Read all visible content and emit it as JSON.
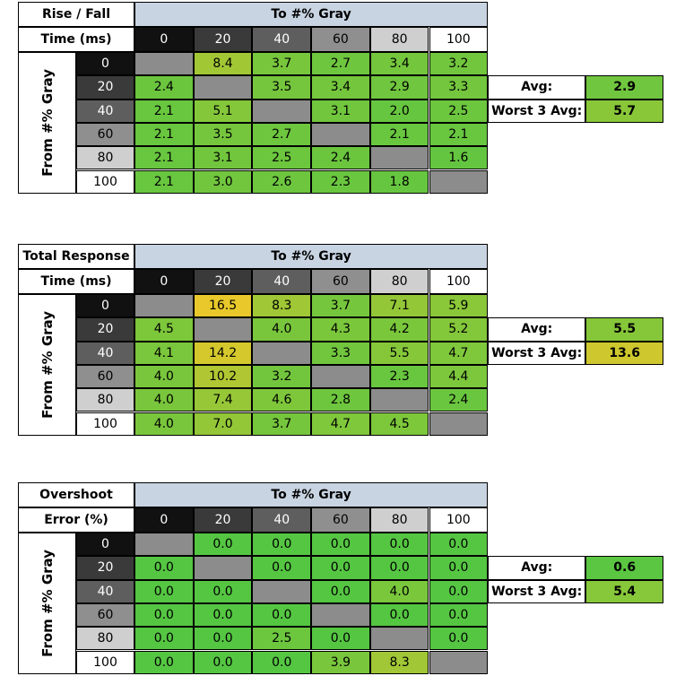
{
  "tables": [
    {
      "title_line1": "Rise / Fall",
      "title_line2": "Time (ms)",
      "column_header": "To #% Gray",
      "row_header": "From #% Gray",
      "columns": [
        "0",
        "20",
        "40",
        "60",
        "80",
        "100"
      ],
      "rows": [
        "0",
        "20",
        "40",
        "60",
        "80",
        "100"
      ],
      "cells": [
        [
          null,
          "8.4",
          "3.7",
          "2.7",
          "3.4",
          "3.2"
        ],
        [
          "2.4",
          null,
          "3.5",
          "3.4",
          "2.9",
          "3.3"
        ],
        [
          "2.1",
          "5.1",
          null,
          "3.1",
          "2.0",
          "2.5"
        ],
        [
          "2.1",
          "3.5",
          "2.7",
          null,
          "2.1",
          "2.1"
        ],
        [
          "2.1",
          "3.1",
          "2.5",
          "2.4",
          null,
          "1.6"
        ],
        [
          "2.1",
          "3.0",
          "2.6",
          "2.3",
          "1.8",
          null
        ]
      ],
      "avg_label": "Avg:",
      "avg": "2.9",
      "worst_label": "Worst 3 Avg:",
      "worst": "5.7"
    },
    {
      "title_line1": "Total Response",
      "title_line2": "Time (ms)",
      "column_header": "To #% Gray",
      "row_header": "From #% Gray",
      "columns": [
        "0",
        "20",
        "40",
        "60",
        "80",
        "100"
      ],
      "rows": [
        "0",
        "20",
        "40",
        "60",
        "80",
        "100"
      ],
      "cells": [
        [
          null,
          "16.5",
          "8.3",
          "3.7",
          "7.1",
          "5.9"
        ],
        [
          "4.5",
          null,
          "4.0",
          "4.3",
          "4.2",
          "5.2"
        ],
        [
          "4.1",
          "14.2",
          null,
          "3.3",
          "5.5",
          "4.7"
        ],
        [
          "4.0",
          "10.2",
          "3.2",
          null,
          "2.3",
          "4.4"
        ],
        [
          "4.0",
          "7.4",
          "4.6",
          "2.8",
          null,
          "2.4"
        ],
        [
          "4.0",
          "7.0",
          "3.7",
          "4.7",
          "4.5",
          null
        ]
      ],
      "avg_label": "Avg:",
      "avg": "5.5",
      "worst_label": "Worst 3 Avg:",
      "worst": "13.6"
    },
    {
      "title_line1": "Overshoot",
      "title_line2": "Error (%)",
      "column_header": "To #% Gray",
      "row_header": "From #% Gray",
      "columns": [
        "0",
        "20",
        "40",
        "60",
        "80",
        "100"
      ],
      "rows": [
        "0",
        "20",
        "40",
        "60",
        "80",
        "100"
      ],
      "cells": [
        [
          null,
          "0.0",
          "0.0",
          "0.0",
          "0.0",
          "0.0"
        ],
        [
          "0.0",
          null,
          "0.0",
          "0.0",
          "0.0",
          "0.0"
        ],
        [
          "0.0",
          "0.0",
          null,
          "0.0",
          "4.0",
          "0.0"
        ],
        [
          "0.0",
          "0.0",
          "0.0",
          null,
          "0.0",
          "0.0"
        ],
        [
          "0.0",
          "0.0",
          "2.5",
          "0.0",
          null,
          "0.0"
        ],
        [
          "0.0",
          "0.0",
          "0.0",
          "3.9",
          "8.3",
          null
        ]
      ],
      "avg_label": "Avg:",
      "avg": "0.6",
      "worst_label": "Worst 3 Avg:",
      "worst": "5.4"
    }
  ]
}
